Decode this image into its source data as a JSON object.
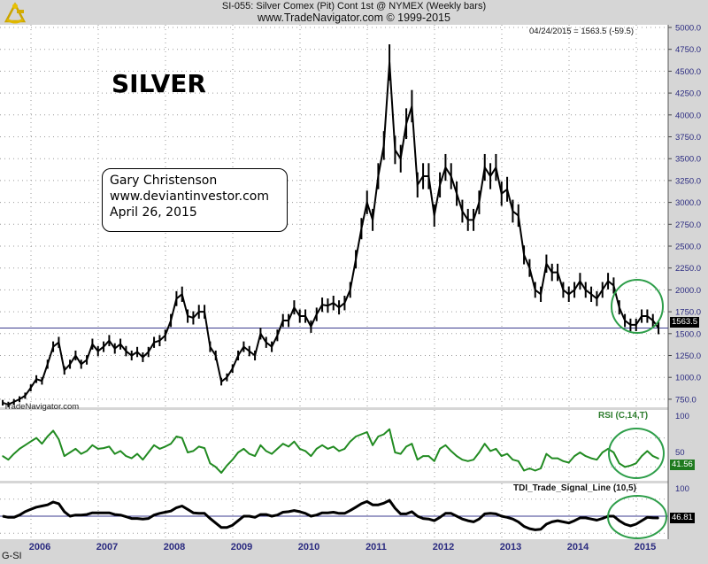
{
  "header": {
    "title": "SI-055:  Silver Comex (Pit) Cont 1st @ NYMEX  (Weekly bars)",
    "subtitle": "www.TradeNavigator.com © 1999-2015",
    "readout": "04/24/2015 = 1563.5 (-59.5)"
  },
  "annotations": {
    "headline": "SILVER",
    "author": "Gary Christenson",
    "website": "www.deviantinvestor.com",
    "date": "April 26, 2015",
    "watermark": "TradeNavigator.com"
  },
  "footer": {
    "symbol": "G-SI"
  },
  "colors": {
    "price": "#000000",
    "rsi": "#228b22",
    "tdi": "#000000",
    "circle": "#2e9e4a",
    "axis_text": "#2b2b80"
  },
  "chart_data": [
    {
      "type": "line",
      "title": "Silver Comex (Pit) Cont 1st @ NYMEX (Weekly bars)",
      "x_start": "2005-07",
      "x_step": "month",
      "x_ticks": [
        "2006",
        "2007",
        "2008",
        "2009",
        "2010",
        "2011",
        "2012",
        "2013",
        "2014",
        "2015"
      ],
      "y_ticks": [
        "5000.0",
        "4750.0",
        "4500.0",
        "4250.0",
        "4000.0",
        "3750.0",
        "3500.0",
        "3250.0",
        "3000.0",
        "2750.0",
        "2500.0",
        "2250.0",
        "2000.0",
        "1750.0",
        "1500.0",
        "1250.0",
        "1000.0",
        "750.0"
      ],
      "ylim": [
        750,
        5000
      ],
      "last_value": "1563.5",
      "last_value_num": 1563.5,
      "values": [
        710,
        690,
        720,
        750,
        790,
        880,
        980,
        960,
        1150,
        1350,
        1400,
        1080,
        1150,
        1250,
        1150,
        1200,
        1380,
        1300,
        1350,
        1420,
        1330,
        1380,
        1300,
        1250,
        1290,
        1230,
        1290,
        1400,
        1420,
        1480,
        1650,
        1900,
        1950,
        1700,
        1680,
        1750,
        1750,
        1350,
        1250,
        950,
        1000,
        1100,
        1250,
        1350,
        1300,
        1250,
        1500,
        1400,
        1350,
        1480,
        1650,
        1650,
        1800,
        1700,
        1700,
        1580,
        1720,
        1830,
        1820,
        1850,
        1800,
        1850,
        2000,
        2350,
        2700,
        3000,
        2800,
        3300,
        3650,
        4600,
        3600,
        3500,
        3900,
        4100,
        3200,
        3300,
        3300,
        2850,
        3200,
        3400,
        3300,
        3100,
        2900,
        2800,
        2800,
        3000,
        3400,
        3300,
        3400,
        3100,
        3150,
        2900,
        2850,
        2400,
        2250,
        2000,
        1950,
        2300,
        2200,
        2200,
        2000,
        1950,
        2000,
        2100,
        2000,
        1950,
        1900,
        2000,
        2100,
        2050,
        1800,
        1650,
        1600,
        1600,
        1700,
        1700,
        1650,
        1563.5
      ]
    },
    {
      "type": "line",
      "title": "RSI (C,14,T)",
      "y_ticks": [
        "100",
        "50"
      ],
      "ylim": [
        0,
        100
      ],
      "last_value": "41.56",
      "values": [
        45,
        40,
        48,
        55,
        60,
        65,
        70,
        62,
        72,
        80,
        68,
        45,
        50,
        55,
        48,
        52,
        60,
        55,
        56,
        58,
        48,
        52,
        45,
        42,
        48,
        40,
        50,
        60,
        55,
        58,
        62,
        72,
        70,
        50,
        52,
        58,
        56,
        35,
        30,
        22,
        32,
        40,
        50,
        55,
        48,
        45,
        60,
        52,
        48,
        55,
        62,
        58,
        65,
        55,
        52,
        45,
        55,
        60,
        55,
        58,
        52,
        55,
        65,
        72,
        75,
        78,
        60,
        72,
        75,
        82,
        50,
        48,
        58,
        62,
        40,
        45,
        45,
        38,
        55,
        60,
        52,
        45,
        40,
        38,
        40,
        50,
        62,
        52,
        55,
        45,
        48,
        40,
        38,
        25,
        28,
        25,
        28,
        48,
        42,
        42,
        38,
        36,
        45,
        50,
        45,
        42,
        40,
        50,
        55,
        50,
        35,
        30,
        32,
        35,
        45,
        52,
        45,
        41.56
      ]
    },
    {
      "type": "line",
      "title": "TDI_Trade_Signal_Line (10,5)",
      "y_ticks": [
        "100"
      ],
      "ylim": [
        0,
        100
      ],
      "last_value": "46.81",
      "values": [
        50,
        48,
        48,
        52,
        58,
        62,
        66,
        68,
        70,
        75,
        72,
        58,
        50,
        52,
        52,
        53,
        56,
        56,
        56,
        56,
        53,
        52,
        49,
        46,
        46,
        45,
        46,
        52,
        55,
        57,
        59,
        65,
        68,
        62,
        56,
        55,
        55,
        46,
        38,
        30,
        30,
        34,
        42,
        50,
        50,
        48,
        53,
        53,
        50,
        52,
        57,
        58,
        60,
        58,
        55,
        50,
        52,
        56,
        56,
        57,
        55,
        55,
        60,
        66,
        72,
        76,
        70,
        70,
        73,
        78,
        64,
        54,
        54,
        58,
        50,
        46,
        45,
        42,
        48,
        55,
        55,
        50,
        45,
        42,
        40,
        45,
        54,
        55,
        54,
        50,
        48,
        45,
        40,
        32,
        28,
        26,
        27,
        36,
        40,
        42,
        40,
        38,
        42,
        47,
        47,
        45,
        43,
        46,
        50,
        50,
        42,
        36,
        33,
        36,
        42,
        48,
        47,
        46.81
      ]
    }
  ]
}
